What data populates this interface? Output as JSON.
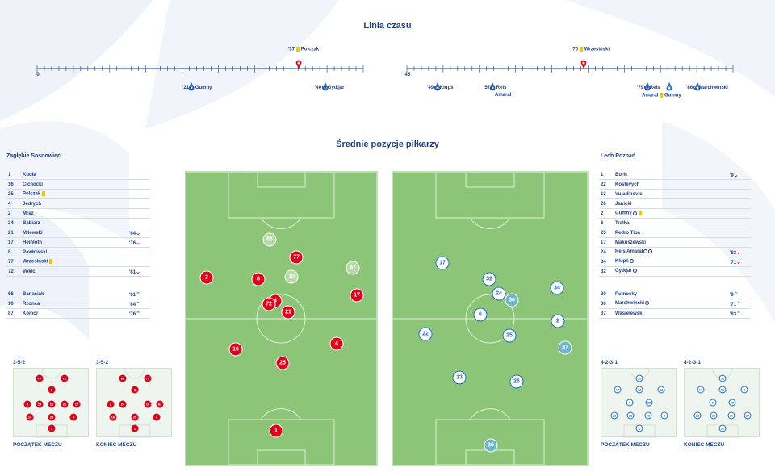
{
  "colors": {
    "navy": "#1e3f86",
    "red": "#e2001a",
    "blue": "#1e6fc9",
    "pitch": "#8cc578",
    "card": "#f2c40d"
  },
  "timeline": {
    "title": "Linia czasu",
    "first_half": {
      "start_label": "'0",
      "events_top": [
        {
          "minute": "'37",
          "player": "Polczak",
          "icon": "yellow-card",
          "team": "home"
        }
      ],
      "events_bottom": [
        {
          "minute": "'21",
          "player": "Gumny",
          "icon": "ball-icon",
          "team": "away"
        },
        {
          "minute": "'40",
          "player": "Gytkjar",
          "icon": "ball-icon",
          "team": "away"
        }
      ]
    },
    "second_half": {
      "start_label": "'45",
      "events_top": [
        {
          "minute": "'70",
          "player": "Wrzesiński",
          "icon": "yellow-card",
          "team": "home"
        }
      ],
      "events_bottom": [
        {
          "minute": "'49",
          "player": "Klupś",
          "icon": "ball-icon",
          "team": "away"
        },
        {
          "minute": "'57",
          "player": "Reis",
          "extra": "Amaral",
          "icon": "ball-icon",
          "team": "away"
        },
        {
          "minute": "'79",
          "player": "Reis",
          "extra": "Amaral",
          "extra2": "Gumny",
          "icon": "ball-icon",
          "team": "away"
        },
        {
          "minute": "'86",
          "player": "Marchwinski",
          "icon": "ball-icon",
          "team": "away"
        }
      ]
    }
  },
  "positions_title": "Średnie pozycje piłkarzy",
  "home": {
    "name": "Zagłębie Sosnowiec",
    "players": [
      {
        "num": "1",
        "name": "Kudła",
        "mark": "",
        "min": ""
      },
      {
        "num": "16",
        "name": "Cichocki",
        "mark": "",
        "min": ""
      },
      {
        "num": "25",
        "name": "Polczak",
        "mark": "card",
        "min": ""
      },
      {
        "num": "4",
        "name": "Jędrych",
        "mark": "",
        "min": ""
      },
      {
        "num": "2",
        "name": "Mraz",
        "mark": "",
        "min": ""
      },
      {
        "num": "24",
        "name": "Babiarz",
        "mark": "",
        "min": ""
      },
      {
        "num": "21",
        "name": "Milewski",
        "mark": "",
        "min": "'64",
        "arrow": "down"
      },
      {
        "num": "17",
        "name": "Heinloth",
        "mark": "",
        "min": "'76",
        "arrow": "down"
      },
      {
        "num": "8",
        "name": "Pawłowski",
        "mark": "",
        "min": ""
      },
      {
        "num": "77",
        "name": "Wrzesiński",
        "mark": "card",
        "min": ""
      },
      {
        "num": "72",
        "name": "Vokic",
        "mark": "",
        "min": "'61",
        "arrow": "down"
      }
    ],
    "subs": [
      {
        "num": "66",
        "name": "Banasiak",
        "min": "'61",
        "arrow": "up"
      },
      {
        "num": "10",
        "name": "Rzonca",
        "min": "'64",
        "arrow": "up"
      },
      {
        "num": "87",
        "name": "Komor",
        "min": "'76",
        "arrow": "up"
      }
    ],
    "formation_start": "3-5-2",
    "formation_end": "3-5-2",
    "caption_start": "POCZĄTEK MECZU",
    "caption_end": "KONIEC MECZU"
  },
  "away": {
    "name": "Lech Poznań",
    "players": [
      {
        "num": "1",
        "name": "Buric",
        "mark": "",
        "min": "'9",
        "arrow": "down"
      },
      {
        "num": "22",
        "name": "Kostevych",
        "mark": "",
        "min": ""
      },
      {
        "num": "13",
        "name": "Vujadinovic",
        "mark": "",
        "min": ""
      },
      {
        "num": "26",
        "name": "Janicki",
        "mark": "",
        "min": ""
      },
      {
        "num": "2",
        "name": "Gumny",
        "mark": "ball-card",
        "min": ""
      },
      {
        "num": "6",
        "name": "Trałka",
        "mark": "",
        "min": ""
      },
      {
        "num": "25",
        "name": "Pedro Tiba",
        "mark": "",
        "min": ""
      },
      {
        "num": "17",
        "name": "Makuszewski",
        "mark": "",
        "min": ""
      },
      {
        "num": "24",
        "name": "Reis Amaral",
        "mark": "ball-ball",
        "min": "'83",
        "arrow": "down"
      },
      {
        "num": "34",
        "name": "Klupś",
        "mark": "ball",
        "min": "'71",
        "arrow": "down"
      },
      {
        "num": "32",
        "name": "Gytkjar",
        "mark": "ball",
        "min": ""
      }
    ],
    "subs": [
      {
        "num": "30",
        "name": "Putnocky",
        "min": "'9",
        "arrow": "up"
      },
      {
        "num": "36",
        "name": "Marchwinski",
        "mark": "ball",
        "min": "'71",
        "arrow": "up"
      },
      {
        "num": "37",
        "name": "Wasielewski",
        "min": "'83",
        "arrow": "up"
      }
    ],
    "formation_start": "4-2-3-1",
    "formation_end": "4-2-3-1",
    "caption_start": "POCZĄTEK MECZU",
    "caption_end": "KONIEC MECZU"
  },
  "home_pitch_players": [
    "66",
    "77",
    "87",
    "10",
    "2",
    "8",
    "17",
    "72",
    "4",
    "21",
    "16",
    "4",
    "25",
    "1"
  ],
  "away_pitch_players": [
    "17",
    "32",
    "34",
    "24",
    "36",
    "6",
    "2",
    "22",
    "25",
    "37",
    "13",
    "26",
    "30"
  ],
  "home_mini_start": [
    "77",
    "72",
    "8",
    "2",
    "24",
    "10",
    "21",
    "17",
    "16",
    "25",
    "4",
    "1"
  ],
  "home_mini_end": [
    "66",
    "77",
    "8",
    "2",
    "24",
    "10",
    "87",
    "16",
    "25",
    "4",
    "1"
  ],
  "away_mini_start": [
    "32",
    "17",
    "24",
    "34",
    "6",
    "25",
    "22",
    "13",
    "26",
    "2",
    "1"
  ],
  "away_mini_end": [
    "32",
    "17",
    "36",
    "2",
    "6",
    "25",
    "22",
    "13",
    "26",
    "37",
    "30"
  ]
}
